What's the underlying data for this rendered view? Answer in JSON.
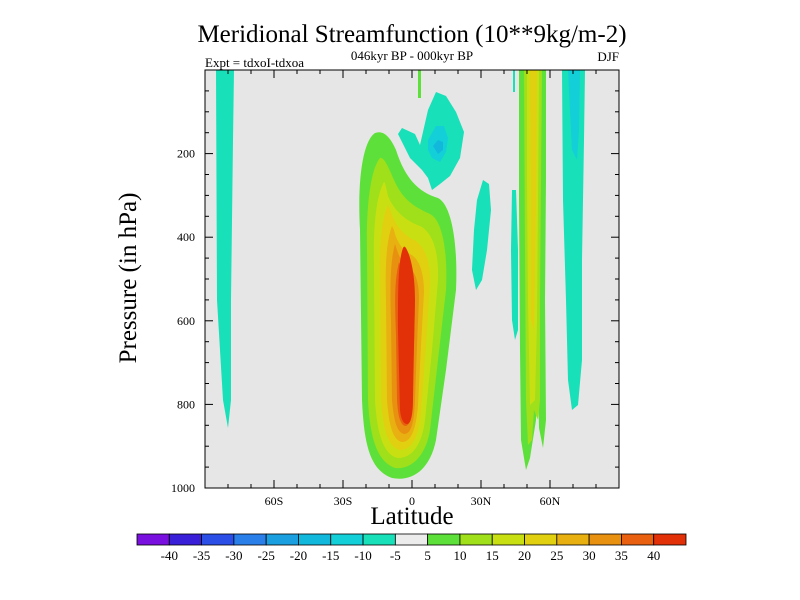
{
  "chart_data": {
    "type": "contour",
    "title": "Meridional Streamfunction (10**9kg/m-2)",
    "subtitle": "046kyr BP - 000kyr BP",
    "left_label": "Expt = tdxoI-tdxoa",
    "right_label": "DJF",
    "xlabel": "Latitude",
    "ylabel": "Pressure (in hPa)",
    "xlim": [
      -90,
      90
    ],
    "ylim": [
      1000,
      0
    ],
    "x_ticks": [
      {
        "value": -60,
        "label": "60S"
      },
      {
        "value": -30,
        "label": "30S"
      },
      {
        "value": 0,
        "label": "0"
      },
      {
        "value": 30,
        "label": "30N"
      },
      {
        "value": 60,
        "label": "60N"
      }
    ],
    "y_ticks": [
      {
        "value": 200,
        "label": "200"
      },
      {
        "value": 400,
        "label": "400"
      },
      {
        "value": 600,
        "label": "600"
      },
      {
        "value": 800,
        "label": "800"
      },
      {
        "value": 1000,
        "label": "1000"
      }
    ],
    "colorbar": {
      "labels": [
        "-40",
        "-35",
        "-30",
        "-25",
        "-20",
        "-15",
        "-10",
        "-5",
        "5",
        "10",
        "15",
        "20",
        "25",
        "30",
        "35",
        "40"
      ],
      "colors": [
        "#7a10e0",
        "#3a1fd8",
        "#2a4ee6",
        "#2a7fe8",
        "#1a9fe0",
        "#12b8dc",
        "#12cfd8",
        "#18e0b8",
        "#ececec",
        "#5ee03a",
        "#9fe01a",
        "#c8e012",
        "#e0d010",
        "#e8b010",
        "#e89010",
        "#e86010",
        "#e23008"
      ]
    },
    "background_color": "#e6e6e6",
    "features": [
      {
        "kind": "positive-cell",
        "lat_range": [
          -15,
          15
        ],
        "p_range": [
          95,
          985
        ],
        "max_level": 40
      },
      {
        "kind": "negative-cell",
        "lat_range": [
          3,
          15
        ],
        "p_range": [
          80,
          290
        ],
        "max_level": -20
      },
      {
        "kind": "negative-column",
        "lat_range": [
          -83,
          -77
        ],
        "p_range": [
          0,
          860
        ],
        "level": -10
      },
      {
        "kind": "positive-column",
        "lat_range": [
          48,
          55
        ],
        "p_range": [
          0,
          975
        ],
        "max_level": 20
      },
      {
        "kind": "negative-column",
        "lat_range": [
          66,
          77
        ],
        "p_range": [
          0,
          820
        ],
        "max_level": -15
      }
    ]
  }
}
